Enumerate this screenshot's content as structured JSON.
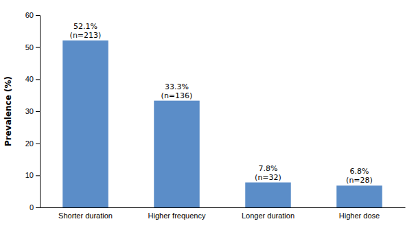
{
  "chart_data": {
    "type": "bar",
    "categories": [
      "Shorter duration",
      "Higher frequency",
      "Longer duration",
      "Higher dose"
    ],
    "values": [
      52.1,
      33.3,
      7.8,
      6.8
    ],
    "value_labels": [
      "52.1%",
      "33.3%",
      "7.8%",
      "6.8%"
    ],
    "count_labels": [
      "(n=213)",
      "(n=136)",
      "(n=32)",
      "(n=28)"
    ],
    "color": "#5B8DC8",
    "ylabel": "Prevalence (%)",
    "ylim": [
      0,
      60
    ],
    "yticks": [
      0,
      10,
      20,
      30,
      40,
      50,
      60
    ],
    "grid": false,
    "data_labels": true
  }
}
